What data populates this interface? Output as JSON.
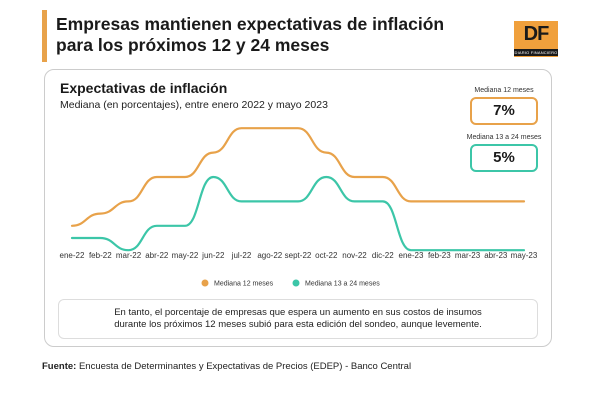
{
  "headline": "Empresas mantienen expectativas de inflación para los próximos 12 y 24 meses",
  "logo": {
    "mark": "DF",
    "tagline": "DIARIO FINANCIERO"
  },
  "kpis": [
    {
      "label": "Mediana 12 meses",
      "value": "7%",
      "color": "#e8a24a"
    },
    {
      "label": "Mediana 13 a 24 meses",
      "value": "5%",
      "color": "#3cc6a8"
    }
  ],
  "note": "En tanto, el porcentaje de empresas que espera un aumento en sus costos de insumos durante los próximos 12 meses subió para esta edición del sondeo, aunque levemente.",
  "source": {
    "label": "Fuente:",
    "text": " Encuesta de Determinantes y Expectativas de Precios (EDEP) - Banco Central"
  },
  "chart_data": {
    "type": "line",
    "title": "Expectativas de inflación",
    "subtitle": "Mediana (en porcentajes), entre enero 2022 y mayo 2023",
    "xlabel": "",
    "ylabel": "",
    "categories": [
      "ene-22",
      "feb-22",
      "mar-22",
      "abr-22",
      "may-22",
      "jun-22",
      "jul-22",
      "ago-22",
      "sept-22",
      "oct-22",
      "nov-22",
      "dic-22",
      "ene-23",
      "feb-23",
      "mar-23",
      "abr-23",
      "may-23"
    ],
    "ylim": [
      4.6,
      10.5
    ],
    "grid": false,
    "legend": "bottom",
    "series": [
      {
        "name": "Mediana 12 meses",
        "color": "#e8a24a",
        "values": [
          6.0,
          6.5,
          7.0,
          8.0,
          8.0,
          9.0,
          10.0,
          10.0,
          10.0,
          9.0,
          8.0,
          8.0,
          7.0,
          7.0,
          7.0,
          7.0,
          7.0
        ]
      },
      {
        "name": "Mediana 13 a 24 meses",
        "color": "#3cc6a8",
        "values": [
          5.5,
          5.5,
          5.0,
          6.0,
          6.0,
          8.0,
          7.0,
          7.0,
          7.0,
          8.0,
          7.0,
          7.0,
          5.0,
          5.0,
          5.0,
          5.0,
          5.0
        ]
      }
    ]
  }
}
